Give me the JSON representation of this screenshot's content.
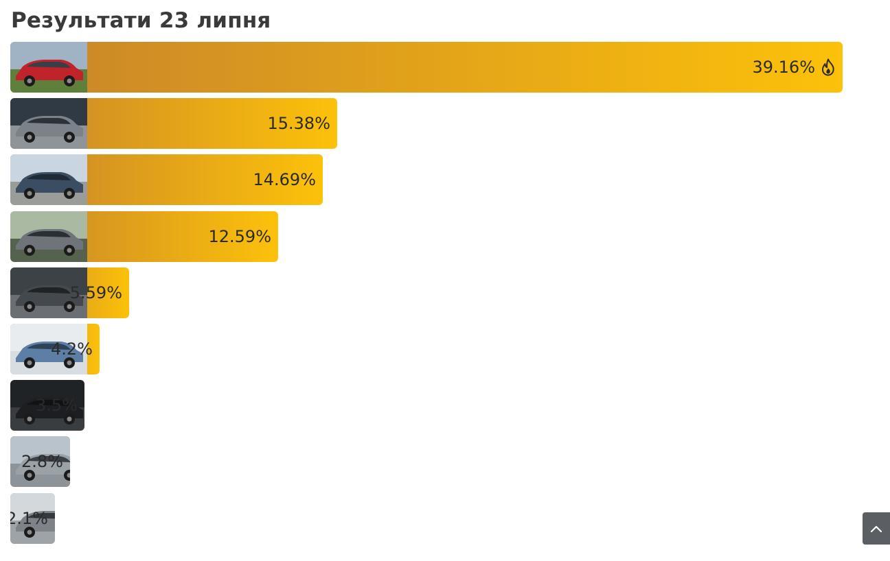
{
  "title": "Результати 23 липня",
  "colors": {
    "bar_start": "#c8852a",
    "bar_end": "#fcc10a",
    "scroll_button": "#5b5f63"
  },
  "chart_data": {
    "type": "bar",
    "orientation": "horizontal",
    "title": "Результати 23 липня",
    "unit": "%",
    "xlim": [
      0,
      39.16
    ],
    "grid": false,
    "legend": "none",
    "bars": [
      {
        "value": 39.16,
        "label": "39.16%",
        "hot": true,
        "photo": "red-sedan-photo"
      },
      {
        "value": 15.38,
        "label": "15.38%",
        "hot": false,
        "photo": "grey-sedan-photo"
      },
      {
        "value": 14.69,
        "label": "14.69%",
        "hot": false,
        "photo": "blue-sedan-photo"
      },
      {
        "value": 12.59,
        "label": "12.59%",
        "hot": false,
        "photo": "grey-wagon-photo"
      },
      {
        "value": 5.59,
        "label": "5.59%",
        "hot": false,
        "photo": "dark-sedan-front-photo"
      },
      {
        "value": 4.2,
        "label": "4.2%",
        "hot": false,
        "photo": "blue-sedan-rear-photo"
      },
      {
        "value": 3.5,
        "label": "3.5%",
        "hot": false,
        "photo": "dark-suv-rear-photo"
      },
      {
        "value": 2.8,
        "label": "2.8%",
        "hot": false,
        "photo": "silver-crossover-photo"
      },
      {
        "value": 2.1,
        "label": "2.1%",
        "hot": false,
        "photo": "grey-crossover-photo"
      }
    ]
  },
  "scroll_top": {
    "icon": "chevron-up-icon"
  }
}
